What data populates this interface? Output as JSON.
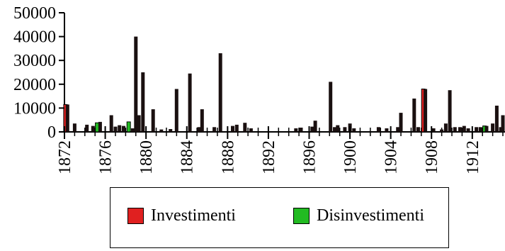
{
  "chart_data": {
    "type": "bar",
    "title": "",
    "xlabel": "",
    "ylabel": "",
    "ylim": [
      0,
      50000
    ],
    "xlim": [
      1872,
      1915
    ],
    "y_ticks": [
      "0",
      "10000",
      "20000",
      "30000",
      "40000",
      "50000"
    ],
    "x_ticks": [
      "1872",
      "1876",
      "1880",
      "1884",
      "1888",
      "1892",
      "1896",
      "1900",
      "1904",
      "1908",
      "1912"
    ],
    "legend": {
      "placement": "bottom",
      "entries": [
        {
          "name": "Investimenti",
          "color": "#e02020"
        },
        {
          "name": "Disinvestimenti",
          "color": "#22bb22"
        }
      ]
    },
    "colors": {
      "neutral": "#1a1010",
      "investimenti": "#e02020",
      "disinvestimenti": "#22bb22"
    },
    "bars": [
      {
        "x": 1872.1,
        "value": 11500,
        "kind": "investimenti"
      },
      {
        "x": 1872.3,
        "value": 11500,
        "kind": "neutral"
      },
      {
        "x": 1873.0,
        "value": 3500,
        "kind": "neutral"
      },
      {
        "x": 1874.2,
        "value": 3000,
        "kind": "neutral"
      },
      {
        "x": 1874.8,
        "value": 2500,
        "kind": "neutral"
      },
      {
        "x": 1875.2,
        "value": 3800,
        "kind": "disinvestimenti"
      },
      {
        "x": 1875.5,
        "value": 4200,
        "kind": "neutral"
      },
      {
        "x": 1876.6,
        "value": 7000,
        "kind": "neutral"
      },
      {
        "x": 1877.0,
        "value": 2200,
        "kind": "neutral"
      },
      {
        "x": 1877.4,
        "value": 2800,
        "kind": "neutral"
      },
      {
        "x": 1877.8,
        "value": 2500,
        "kind": "neutral"
      },
      {
        "x": 1878.3,
        "value": 4200,
        "kind": "disinvestimenti"
      },
      {
        "x": 1878.7,
        "value": 1500,
        "kind": "neutral"
      },
      {
        "x": 1879.0,
        "value": 40000,
        "kind": "neutral"
      },
      {
        "x": 1879.3,
        "value": 7000,
        "kind": "neutral"
      },
      {
        "x": 1879.7,
        "value": 25000,
        "kind": "neutral"
      },
      {
        "x": 1880.7,
        "value": 9500,
        "kind": "neutral"
      },
      {
        "x": 1881.5,
        "value": 1000,
        "kind": "neutral"
      },
      {
        "x": 1882.4,
        "value": 1200,
        "kind": "neutral"
      },
      {
        "x": 1883.0,
        "value": 18000,
        "kind": "neutral"
      },
      {
        "x": 1884.3,
        "value": 24500,
        "kind": "neutral"
      },
      {
        "x": 1885.2,
        "value": 2000,
        "kind": "neutral"
      },
      {
        "x": 1885.5,
        "value": 9500,
        "kind": "neutral"
      },
      {
        "x": 1886.7,
        "value": 2000,
        "kind": "neutral"
      },
      {
        "x": 1887.3,
        "value": 33000,
        "kind": "neutral"
      },
      {
        "x": 1888.5,
        "value": 2500,
        "kind": "neutral"
      },
      {
        "x": 1888.9,
        "value": 3000,
        "kind": "neutral"
      },
      {
        "x": 1889.7,
        "value": 3800,
        "kind": "neutral"
      },
      {
        "x": 1890.3,
        "value": 1500,
        "kind": "neutral"
      },
      {
        "x": 1894.7,
        "value": 1500,
        "kind": "neutral"
      },
      {
        "x": 1895.2,
        "value": 1800,
        "kind": "neutral"
      },
      {
        "x": 1896.3,
        "value": 2200,
        "kind": "neutral"
      },
      {
        "x": 1896.6,
        "value": 4700,
        "kind": "neutral"
      },
      {
        "x": 1898.1,
        "value": 21000,
        "kind": "neutral"
      },
      {
        "x": 1898.5,
        "value": 2000,
        "kind": "neutral"
      },
      {
        "x": 1898.8,
        "value": 2800,
        "kind": "neutral"
      },
      {
        "x": 1899.5,
        "value": 2000,
        "kind": "neutral"
      },
      {
        "x": 1900.0,
        "value": 3500,
        "kind": "neutral"
      },
      {
        "x": 1900.4,
        "value": 1500,
        "kind": "neutral"
      },
      {
        "x": 1902.8,
        "value": 2000,
        "kind": "neutral"
      },
      {
        "x": 1903.6,
        "value": 1500,
        "kind": "neutral"
      },
      {
        "x": 1904.7,
        "value": 2000,
        "kind": "neutral"
      },
      {
        "x": 1905.0,
        "value": 8000,
        "kind": "neutral"
      },
      {
        "x": 1906.3,
        "value": 14000,
        "kind": "neutral"
      },
      {
        "x": 1906.7,
        "value": 2000,
        "kind": "neutral"
      },
      {
        "x": 1907.2,
        "value": 18000,
        "kind": "investimenti"
      },
      {
        "x": 1907.4,
        "value": 18000,
        "kind": "neutral"
      },
      {
        "x": 1908.2,
        "value": 1500,
        "kind": "neutral"
      },
      {
        "x": 1909.0,
        "value": 1000,
        "kind": "neutral"
      },
      {
        "x": 1909.4,
        "value": 3500,
        "kind": "neutral"
      },
      {
        "x": 1909.8,
        "value": 17500,
        "kind": "neutral"
      },
      {
        "x": 1910.3,
        "value": 2000,
        "kind": "neutral"
      },
      {
        "x": 1910.8,
        "value": 2000,
        "kind": "neutral"
      },
      {
        "x": 1911.2,
        "value": 2500,
        "kind": "neutral"
      },
      {
        "x": 1911.6,
        "value": 1500,
        "kind": "neutral"
      },
      {
        "x": 1912.4,
        "value": 2000,
        "kind": "neutral"
      },
      {
        "x": 1912.8,
        "value": 2000,
        "kind": "neutral"
      },
      {
        "x": 1913.2,
        "value": 2500,
        "kind": "disinvestimenti"
      },
      {
        "x": 1913.4,
        "value": 2500,
        "kind": "neutral"
      },
      {
        "x": 1914.0,
        "value": 3500,
        "kind": "neutral"
      },
      {
        "x": 1914.4,
        "value": 11000,
        "kind": "neutral"
      },
      {
        "x": 1914.8,
        "value": 2000,
        "kind": "neutral"
      },
      {
        "x": 1915.0,
        "value": 7000,
        "kind": "neutral"
      }
    ]
  }
}
